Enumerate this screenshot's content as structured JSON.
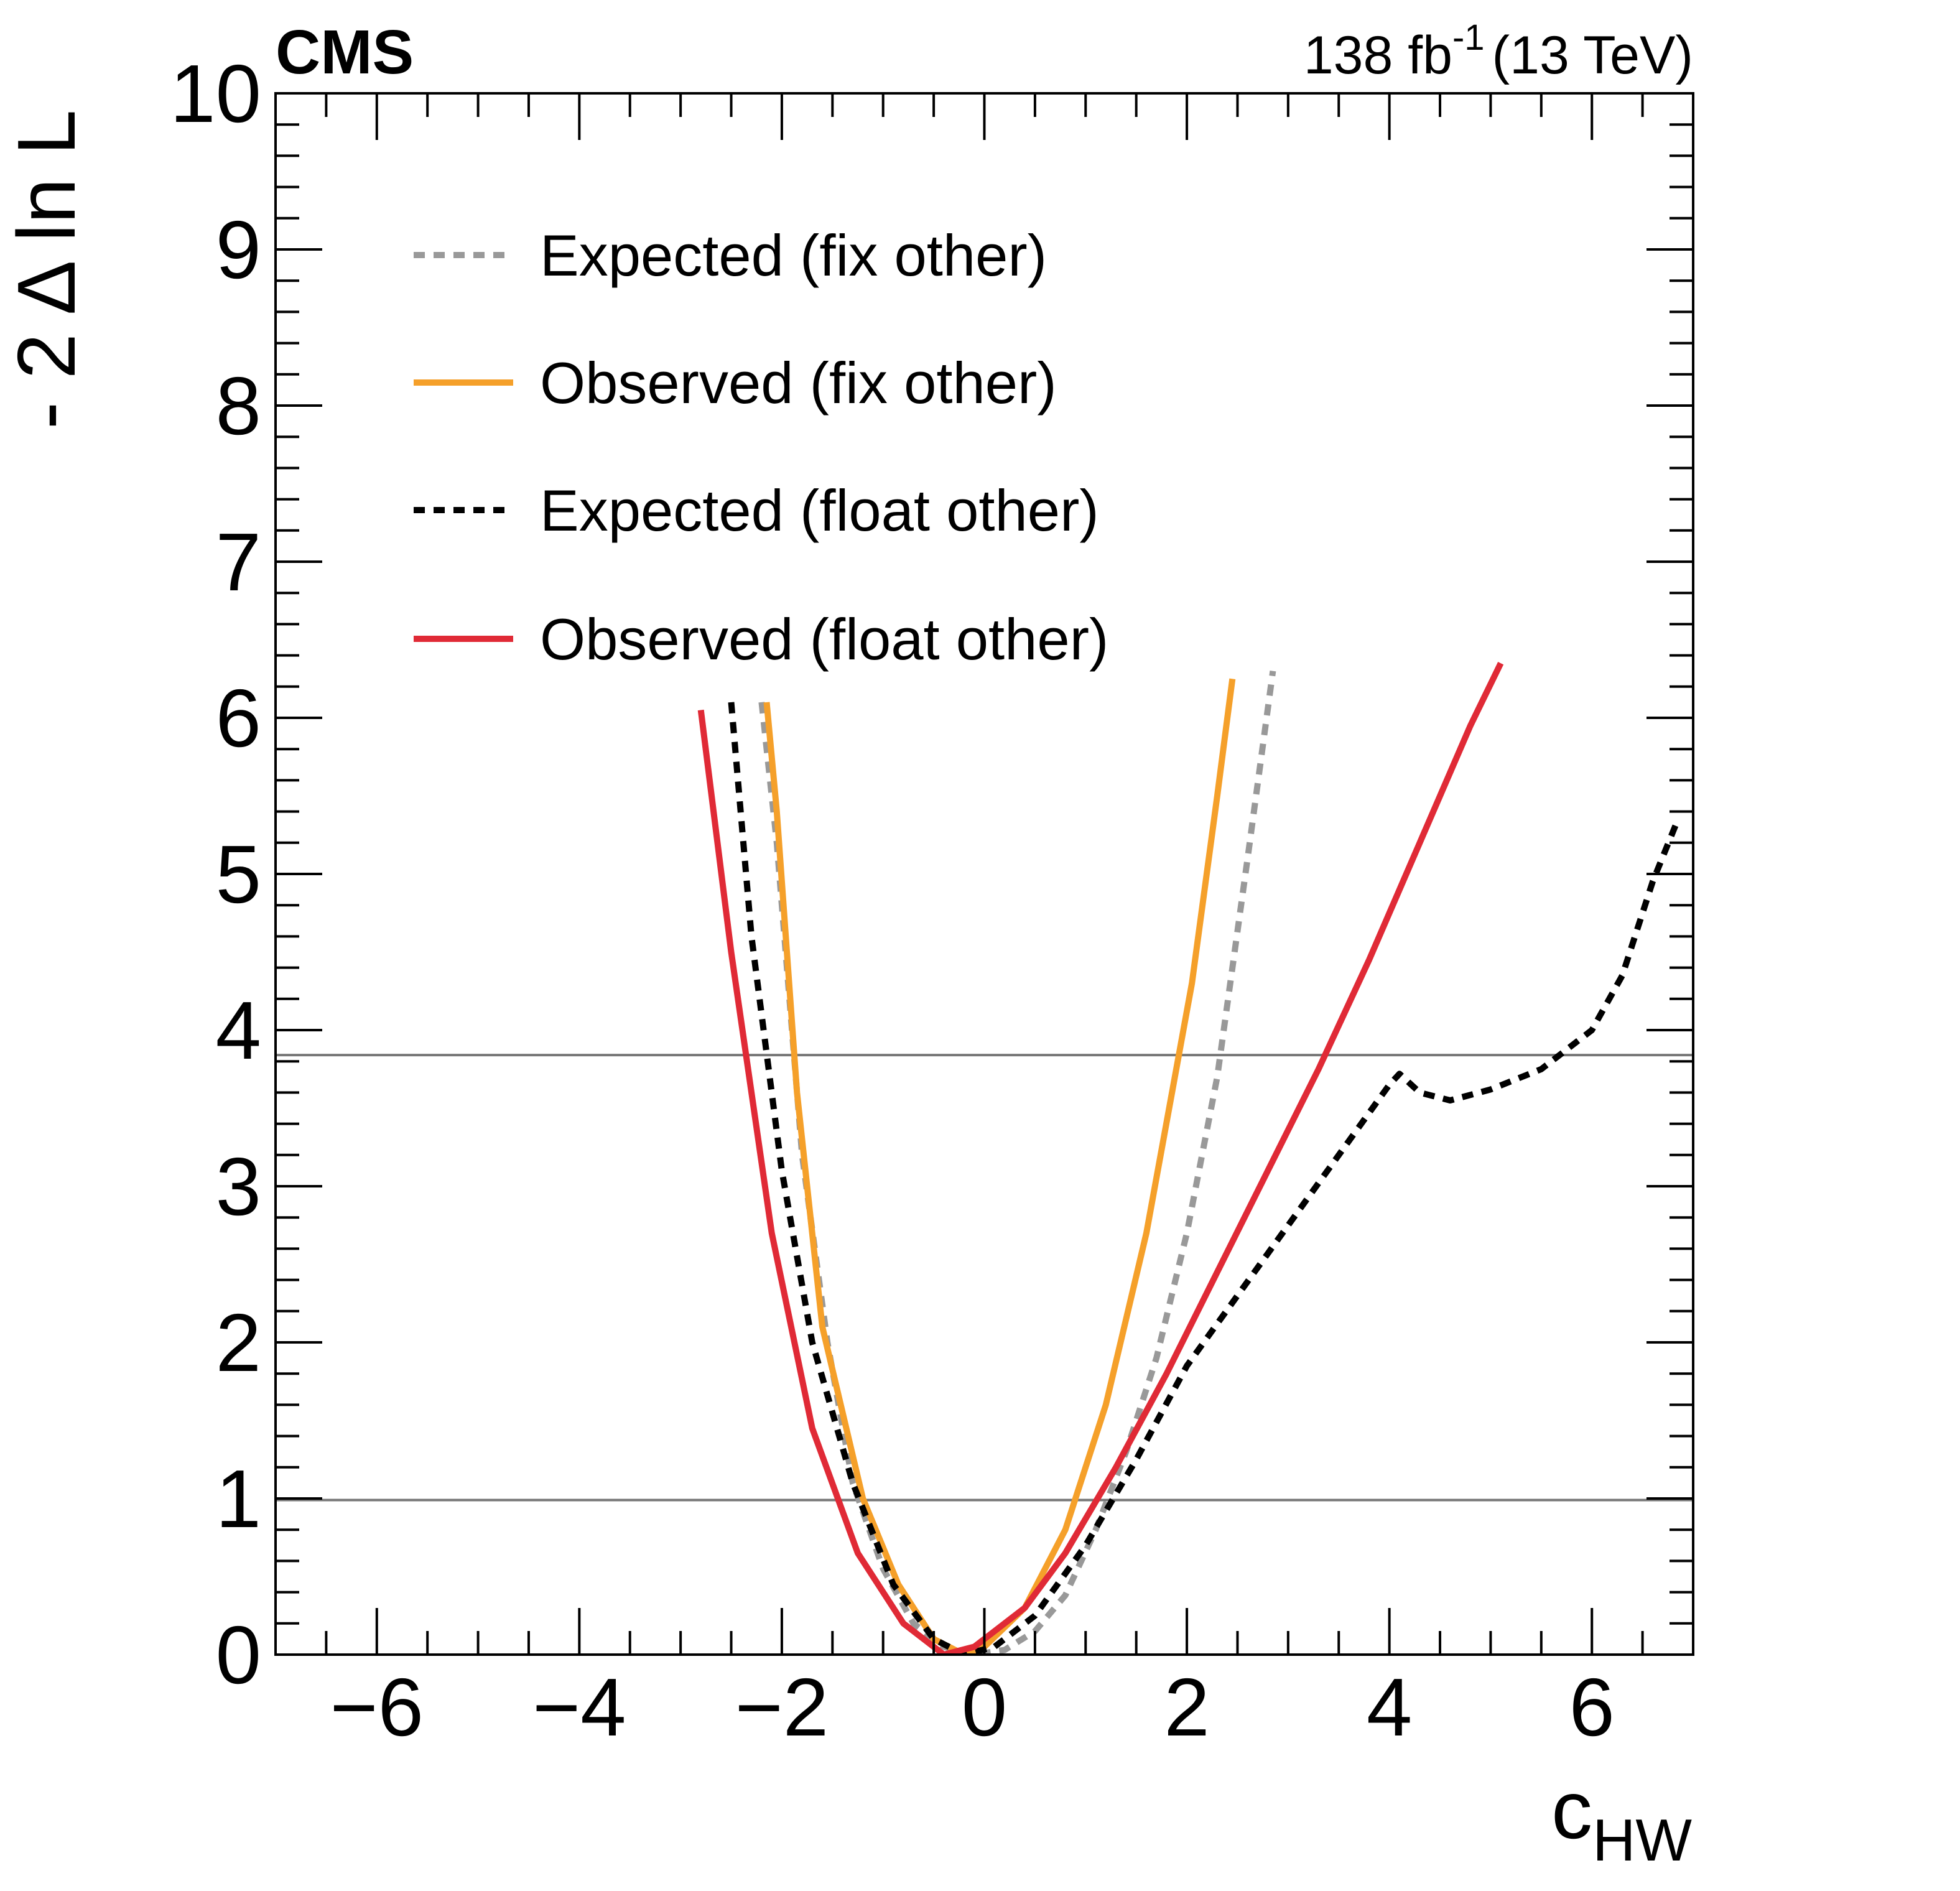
{
  "header": {
    "experiment": "CMS",
    "lumi_value": "138 fb",
    "lumi_exponent": "-1",
    "energy": "(13 TeV)"
  },
  "colors": {
    "expected_fix": "#999999",
    "observed_fix": "#f5a02a",
    "expected_float": "#000000",
    "observed_float": "#e02a36",
    "reference_line": "#777777"
  },
  "chart_data": {
    "type": "line",
    "title": "",
    "xlabel_main": "c",
    "xlabel_sub": "HW",
    "ylabel": "- 2 Δ ln L",
    "xlim": [
      -7,
      7
    ],
    "ylim": [
      0,
      10
    ],
    "x_ticks": [
      -6,
      -4,
      -2,
      0,
      2,
      4,
      6
    ],
    "x_tick_labels": [
      "−6",
      "−4",
      "−2",
      "0",
      "2",
      "4",
      "6"
    ],
    "y_ticks": [
      0,
      1,
      2,
      3,
      4,
      5,
      6,
      7,
      8,
      9,
      10
    ],
    "y_tick_labels": [
      "0",
      "1",
      "2",
      "3",
      "4",
      "5",
      "6",
      "7",
      "8",
      "9",
      "10"
    ],
    "reference_lines": [
      0.99,
      3.84
    ],
    "legend_position": "top-left",
    "series": [
      {
        "name": "Expected (fix other)",
        "style": "dashed",
        "color_key": "expected_fix",
        "points": [
          [
            -2.2,
            6.1
          ],
          [
            -2.05,
            5.2
          ],
          [
            -1.8,
            3.2
          ],
          [
            -1.55,
            2.0
          ],
          [
            -1.3,
            1.1
          ],
          [
            -1.0,
            0.55
          ],
          [
            -0.7,
            0.2
          ],
          [
            -0.4,
            0.05
          ],
          [
            -0.1,
            0.0
          ],
          [
            0.2,
            0.03
          ],
          [
            0.5,
            0.15
          ],
          [
            0.8,
            0.38
          ],
          [
            1.1,
            0.8
          ],
          [
            1.4,
            1.3
          ],
          [
            1.7,
            1.9
          ],
          [
            2.0,
            2.7
          ],
          [
            2.3,
            3.7
          ],
          [
            2.6,
            5.1
          ],
          [
            2.85,
            6.3
          ]
        ]
      },
      {
        "name": "Observed (fix other)",
        "style": "solid",
        "color_key": "observed_fix",
        "points": [
          [
            -2.15,
            6.1
          ],
          [
            -2.05,
            5.4
          ],
          [
            -1.85,
            3.6
          ],
          [
            -1.6,
            2.1
          ],
          [
            -1.2,
            1.0
          ],
          [
            -0.85,
            0.45
          ],
          [
            -0.5,
            0.1
          ],
          [
            -0.2,
            0.0
          ],
          [
            0.0,
            0.05
          ],
          [
            0.4,
            0.3
          ],
          [
            0.8,
            0.8
          ],
          [
            1.2,
            1.6
          ],
          [
            1.6,
            2.7
          ],
          [
            2.05,
            4.3
          ],
          [
            2.3,
            5.5
          ],
          [
            2.45,
            6.25
          ]
        ]
      },
      {
        "name": "Expected (float other)",
        "style": "dashed",
        "color_key": "expected_float",
        "points": [
          [
            -2.5,
            6.1
          ],
          [
            -2.3,
            4.6
          ],
          [
            -2.0,
            3.1
          ],
          [
            -1.7,
            2.0
          ],
          [
            -1.3,
            1.1
          ],
          [
            -0.9,
            0.45
          ],
          [
            -0.5,
            0.1
          ],
          [
            -0.2,
            0.0
          ],
          [
            0.1,
            0.05
          ],
          [
            0.5,
            0.25
          ],
          [
            1.0,
            0.7
          ],
          [
            1.5,
            1.25
          ],
          [
            2.0,
            1.85
          ],
          [
            2.5,
            2.3
          ],
          [
            3.0,
            2.75
          ],
          [
            3.5,
            3.2
          ],
          [
            4.0,
            3.65
          ],
          [
            4.1,
            3.72
          ],
          [
            4.3,
            3.6
          ],
          [
            4.6,
            3.55
          ],
          [
            5.0,
            3.62
          ],
          [
            5.5,
            3.75
          ],
          [
            6.0,
            4.0
          ],
          [
            6.3,
            4.35
          ],
          [
            6.6,
            4.95
          ],
          [
            6.85,
            5.35
          ]
        ]
      },
      {
        "name": "Observed (float other)",
        "style": "solid",
        "color_key": "observed_float",
        "points": [
          [
            -2.8,
            6.05
          ],
          [
            -2.5,
            4.5
          ],
          [
            -2.1,
            2.7
          ],
          [
            -1.7,
            1.45
          ],
          [
            -1.25,
            0.65
          ],
          [
            -0.8,
            0.2
          ],
          [
            -0.4,
            0.0
          ],
          [
            -0.1,
            0.05
          ],
          [
            0.4,
            0.3
          ],
          [
            0.8,
            0.65
          ],
          [
            1.3,
            1.2
          ],
          [
            1.8,
            1.8
          ],
          [
            2.3,
            2.45
          ],
          [
            2.8,
            3.1
          ],
          [
            3.3,
            3.75
          ],
          [
            3.8,
            4.45
          ],
          [
            4.3,
            5.2
          ],
          [
            4.8,
            5.95
          ],
          [
            5.1,
            6.35
          ]
        ]
      }
    ]
  }
}
